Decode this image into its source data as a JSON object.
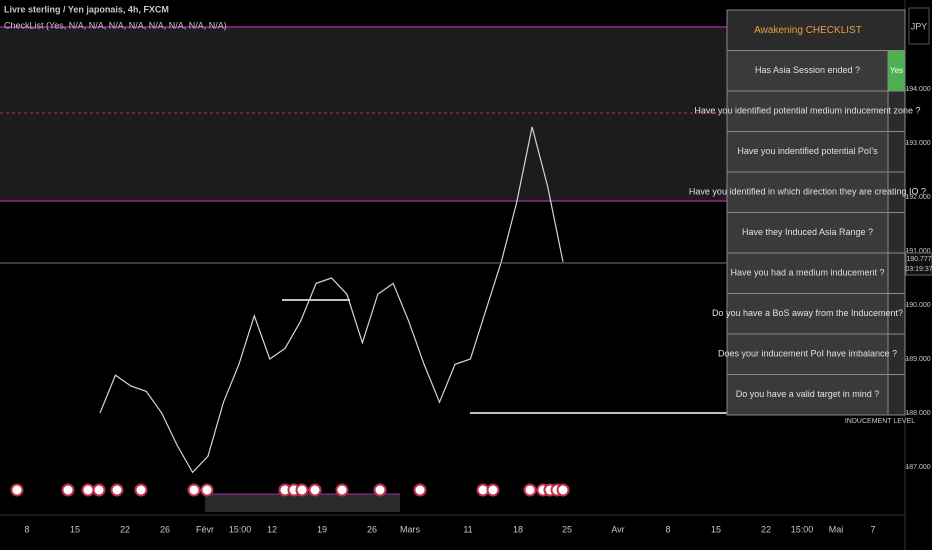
{
  "header": {
    "title": "Livre sterling / Yen japonais, 4h, FXCM",
    "indicator": "CheckList (Yes, N/A, N/A, N/A, N/A, N/A, N/A, N/A, N/A)"
  },
  "currency": "JPY",
  "price_axis": {
    "ylim": [
      186.11,
      195.65
    ],
    "yticks": [
      {
        "value": 194,
        "label": "194.000"
      },
      {
        "value": 193,
        "label": "193.000"
      },
      {
        "value": 192,
        "label": "192.000"
      },
      {
        "value": 191,
        "label": "191.000"
      },
      {
        "value": 190,
        "label": "190.000"
      },
      {
        "value": 189,
        "label": "189.000"
      },
      {
        "value": 188,
        "label": "188.000"
      },
      {
        "value": 187,
        "label": "187.000"
      }
    ]
  },
  "last_price": 190.777,
  "countdown": "03:19:37",
  "price_series": [
    188.0,
    188.7,
    188.5,
    188.4,
    188.0,
    187.4,
    186.9,
    187.2,
    188.2,
    188.9,
    189.8,
    189.0,
    189.2,
    189.7,
    190.4,
    190.5,
    190.2,
    189.3,
    190.2,
    190.4,
    189.7,
    188.9,
    188.2,
    188.9,
    189.0,
    189.9,
    190.8,
    191.9,
    193.3,
    192.2,
    190.8
  ],
  "x_labels": [
    "8",
    "15",
    "22",
    "26",
    "Févr",
    "15:00",
    "12",
    "19",
    "26",
    "Mars",
    "11",
    "18",
    "25",
    "Avr",
    "8",
    "15",
    "22",
    "15:00",
    "Mai",
    "7"
  ],
  "inducement_label": "INDUCEMENT LEVEL",
  "checklist": {
    "title": "Awakening CHECKLIST",
    "rows": [
      {
        "question": "Has Asia Session ended ?",
        "answer": "Yes"
      },
      {
        "question": "Have you identified potential medium inducement zone ?"
      },
      {
        "question": "Have you indentified potential PoI's"
      },
      {
        "question": "Have you identified in which direction they are creating IO ?"
      },
      {
        "question": "Have they Induced Asia Range ?"
      },
      {
        "question": "Have you had a medium inducement ?"
      },
      {
        "question": "Do you have a BoS away from the Inducement?"
      },
      {
        "question": "Does your inducement PoI have imbalance ?"
      },
      {
        "question": "Do you have a valid target in mind ?"
      }
    ]
  }
}
